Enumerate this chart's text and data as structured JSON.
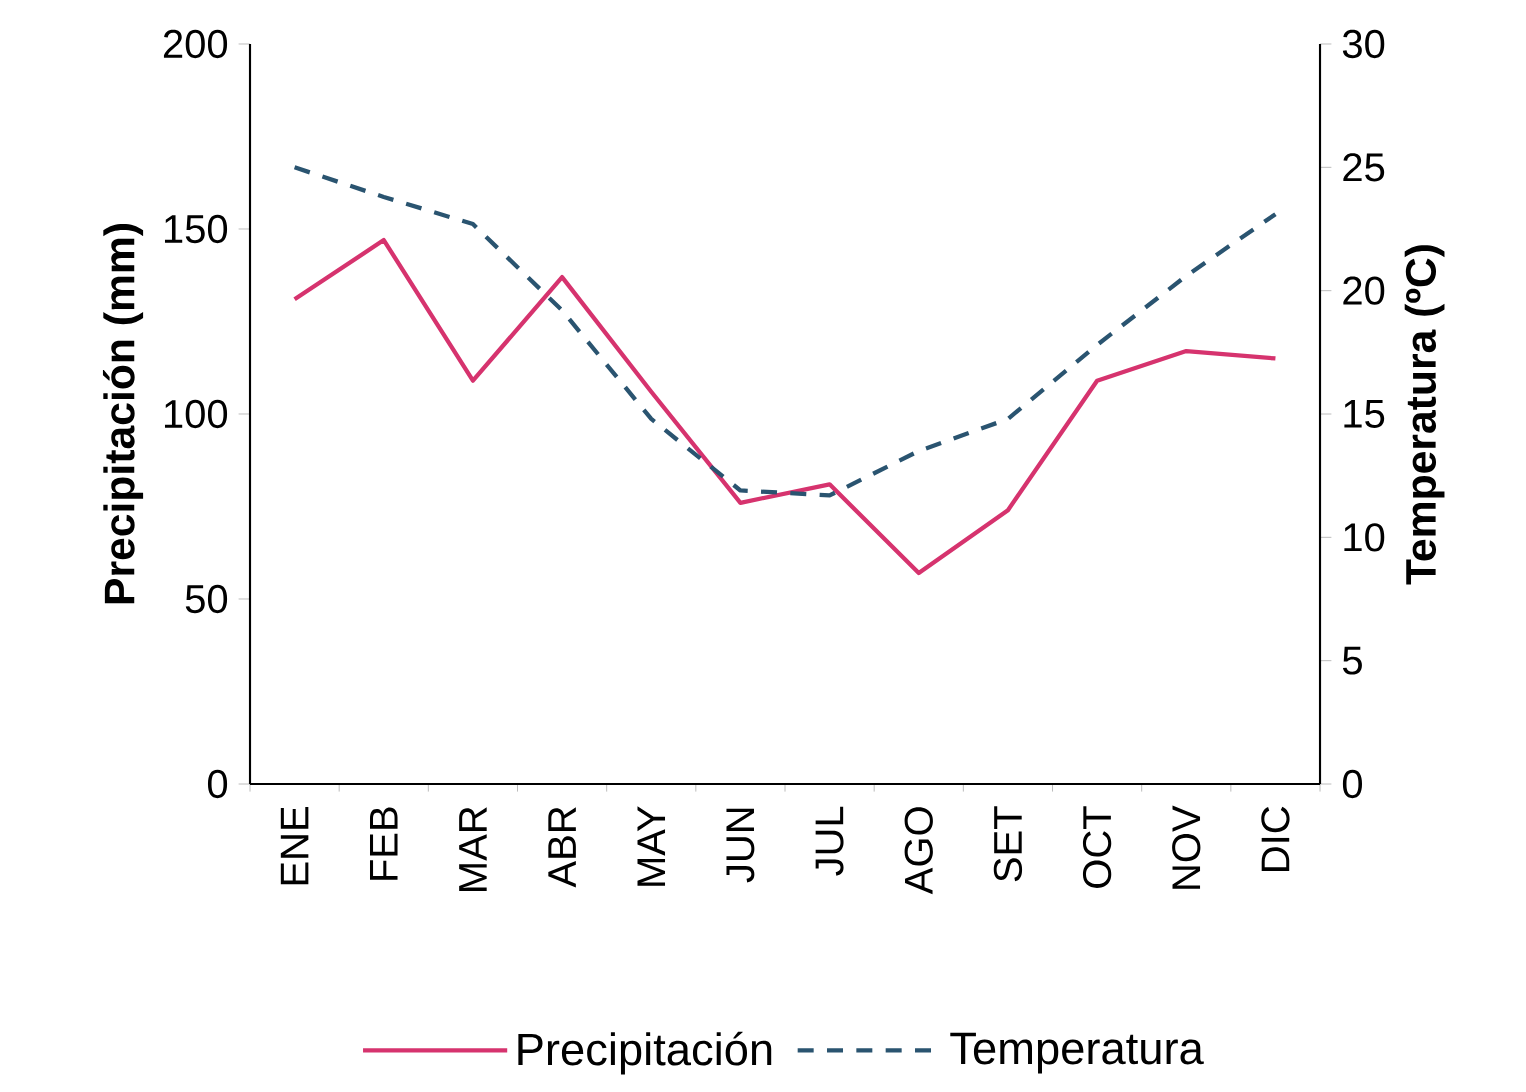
{
  "chart_data": {
    "type": "line",
    "ylabel": "Precipitación (mm)",
    "y2label": "Temperatura (ºC)",
    "categories": [
      "ENE",
      "FEB",
      "MAR",
      "ABR",
      "MAY",
      "JUN",
      "JUL",
      "AGO",
      "SET",
      "OCT",
      "NOV",
      "DIC"
    ],
    "series": [
      {
        "name": "Precipitación",
        "color": "#d6336e",
        "line_style": "solid",
        "values": [
          131,
          147,
          109,
          137,
          106,
          76,
          81,
          57,
          74,
          109,
          117,
          115
        ]
      },
      {
        "name": "Temperatura",
        "color": "#2a5470",
        "line_style": "dashed",
        "axis": "y2",
        "values": [
          25.0,
          23.8,
          22.7,
          19.2,
          14.8,
          11.9,
          11.7,
          13.5,
          14.8,
          17.8,
          20.6,
          23.1
        ]
      }
    ],
    "ylim": [
      0,
      200
    ],
    "yticks": [
      0,
      50,
      100,
      150,
      200
    ],
    "y2lim": [
      0,
      30
    ],
    "y2ticks": [
      0,
      5,
      10,
      15,
      20,
      25,
      30
    ],
    "grid": false,
    "legend": "bottom",
    "marker": "none"
  }
}
